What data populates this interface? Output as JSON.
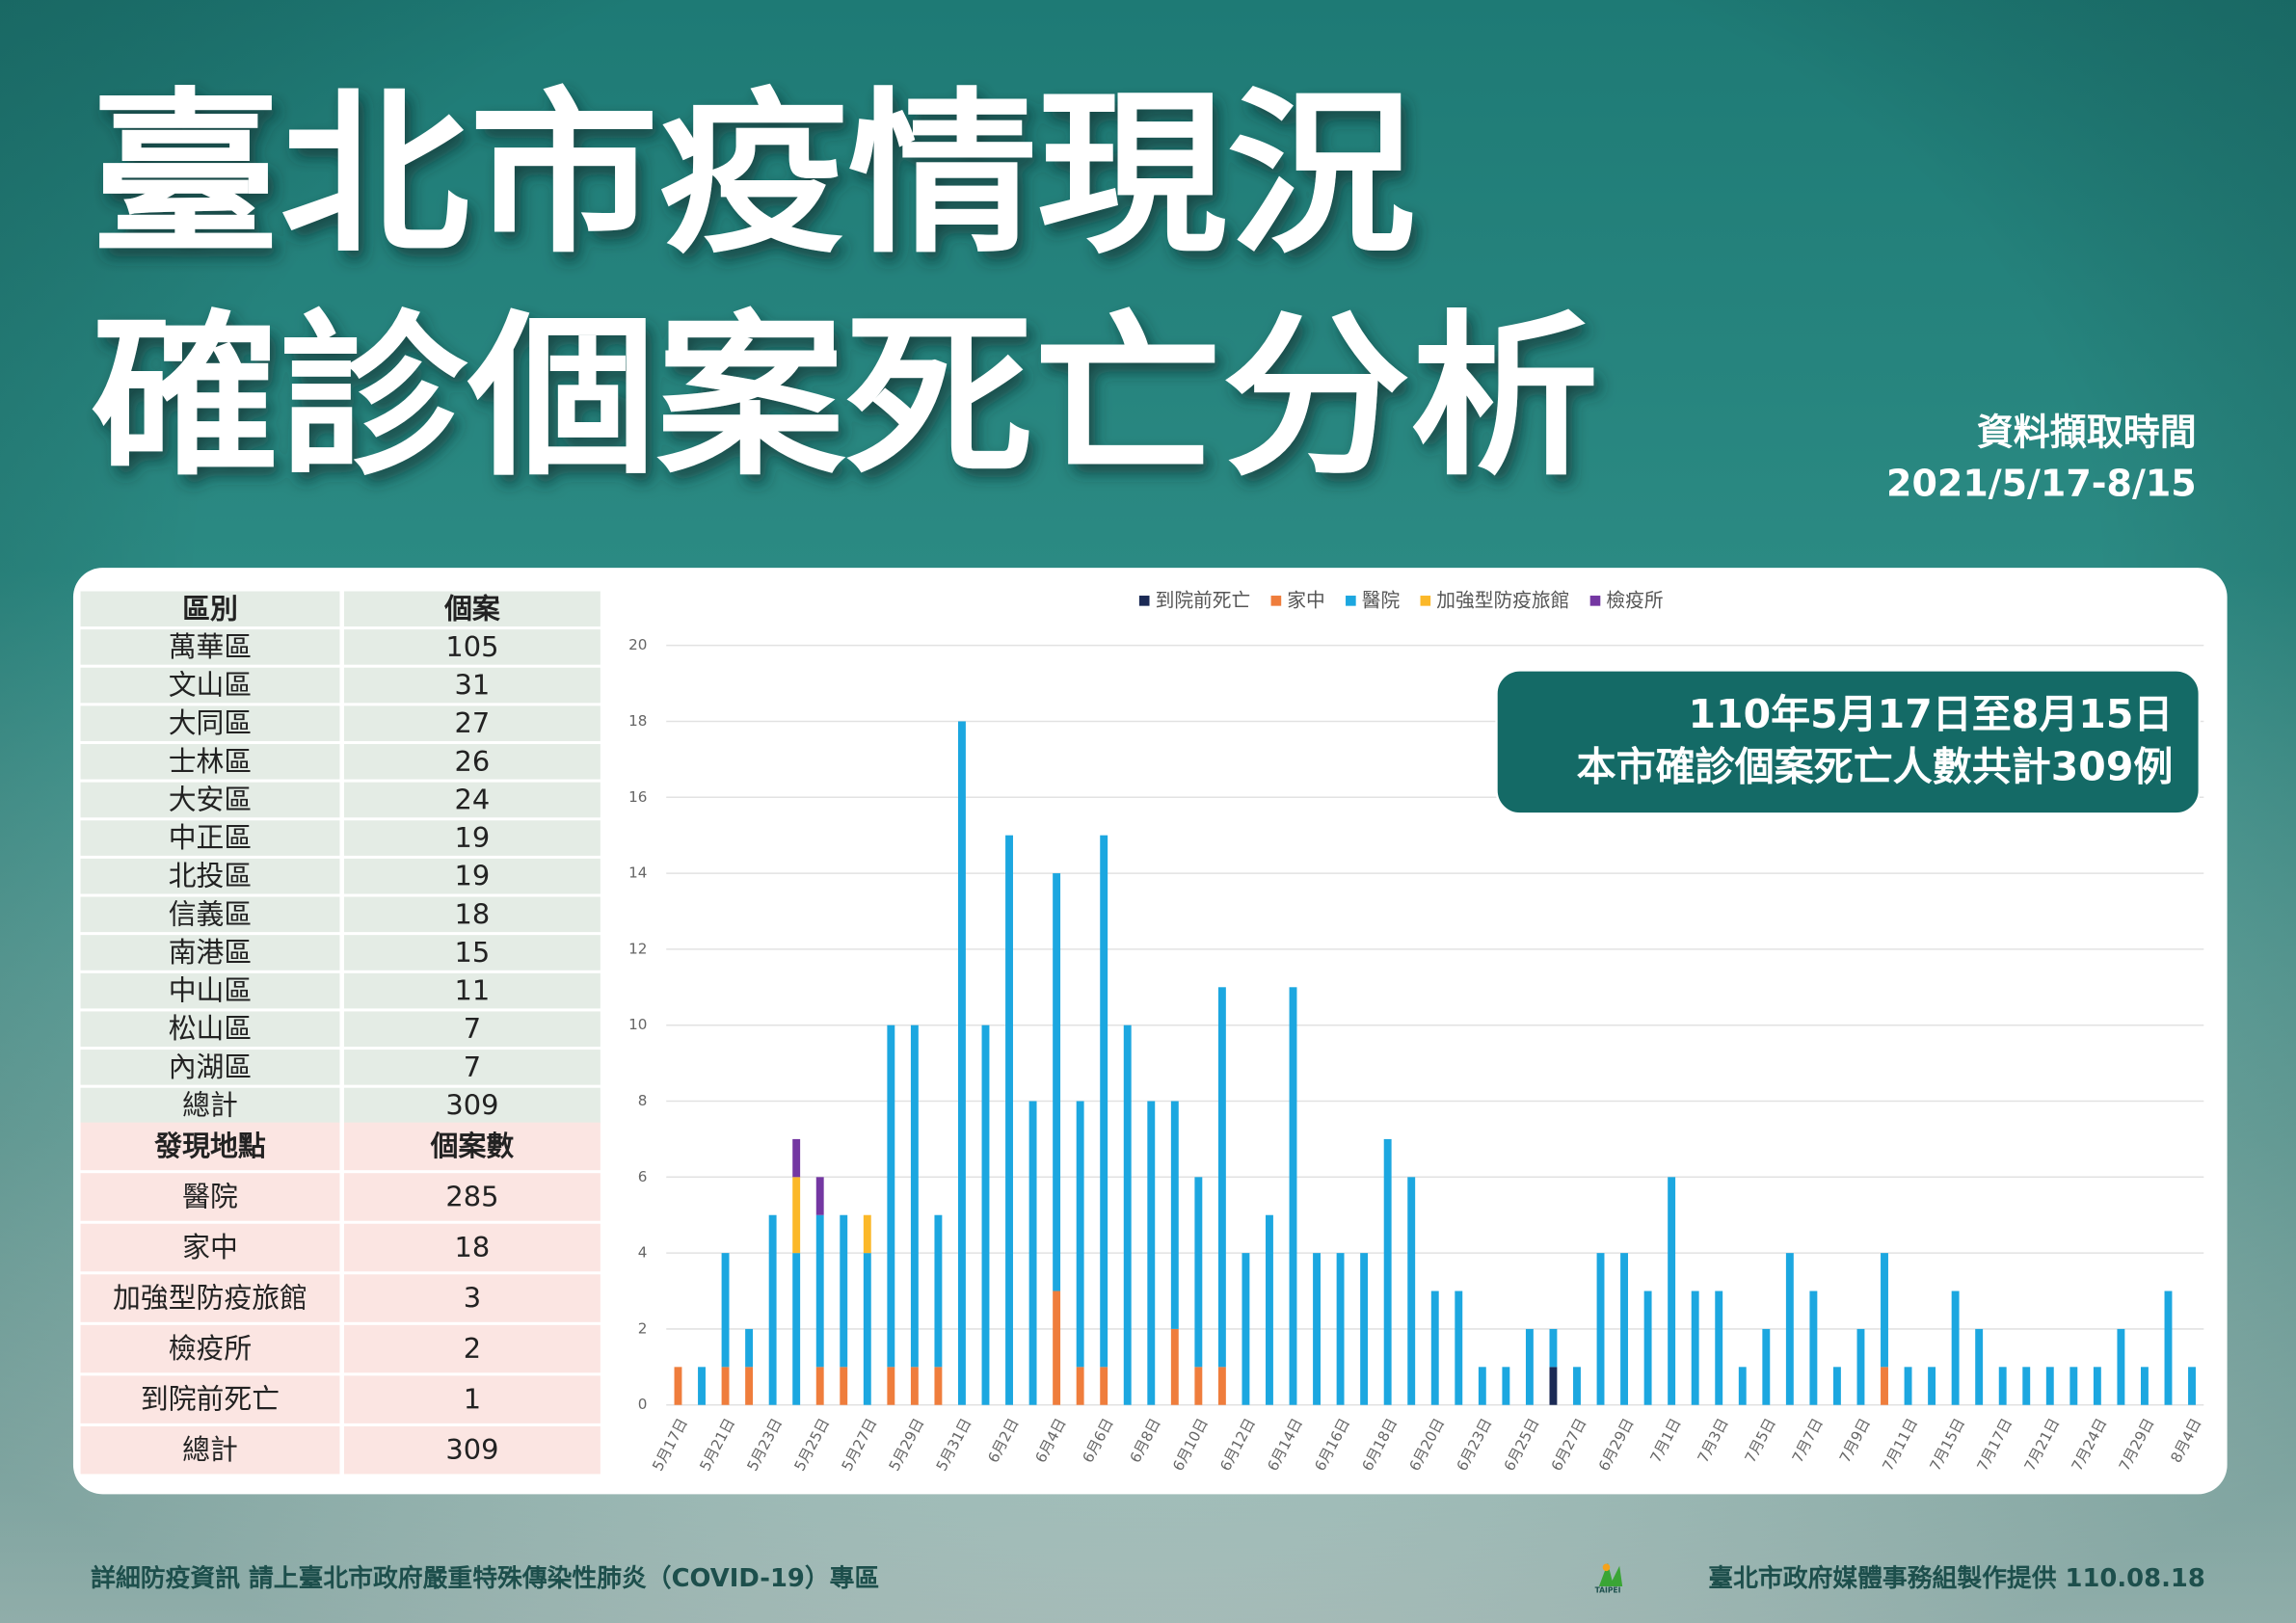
{
  "header": {
    "title_lines": [
      "臺北市疫情現況",
      "確診個案死亡分析"
    ],
    "date_caption": [
      "資料擷取時間",
      "2021/5/17-8/15"
    ]
  },
  "district_table": {
    "header": [
      "區別",
      "個案"
    ],
    "rows": [
      [
        "萬華區",
        105
      ],
      [
        "文山區",
        31
      ],
      [
        "大同區",
        27
      ],
      [
        "士林區",
        26
      ],
      [
        "大安區",
        24
      ],
      [
        "中正區",
        19
      ],
      [
        "北投區",
        19
      ],
      [
        "信義區",
        18
      ],
      [
        "南港區",
        15
      ],
      [
        "中山區",
        11
      ],
      [
        "松山區",
        7
      ],
      [
        "內湖區",
        7
      ],
      [
        "總計",
        309
      ]
    ]
  },
  "location_table": {
    "header": [
      "發現地點",
      "個案數"
    ],
    "rows": [
      [
        "醫院",
        285
      ],
      [
        "家中",
        18
      ],
      [
        "加強型防疫旅館",
        3
      ],
      [
        "檢疫所",
        2
      ],
      [
        "到院前死亡",
        1
      ],
      [
        "總計",
        309
      ]
    ]
  },
  "callout": [
    "110年5月17日至8月15日",
    "本市確診個案死亡人數共計309例"
  ],
  "footer": {
    "left": "詳細防疫資訊 請上臺北市政府嚴重特殊傳染性肺炎（COVID-19）專區",
    "logo_text": "TAIPEI",
    "right": "臺北市政府媒體事務組製作提供 110.08.18"
  },
  "chart_data": {
    "type": "stacked_bar",
    "categories": [
      "5月17日",
      null,
      "5月21日",
      null,
      "5月23日",
      null,
      "5月25日",
      null,
      "5月27日",
      null,
      "5月29日",
      null,
      "5月31日",
      null,
      "6月2日",
      null,
      "6月4日",
      null,
      "6月6日",
      null,
      "6月8日",
      null,
      "6月10日",
      null,
      "6月12日",
      null,
      "6月14日",
      null,
      "6月16日",
      null,
      "6月18日",
      null,
      "6月20日",
      null,
      "6月23日",
      null,
      "6月25日",
      null,
      "6月27日",
      null,
      "6月29日",
      null,
      "7月1日",
      null,
      "7月3日",
      null,
      "7月5日",
      null,
      "7月7日",
      null,
      "7月9日",
      null,
      "7月11日",
      null,
      "7月15日",
      null,
      "7月17日",
      null,
      "7月21日",
      null,
      "7月24日",
      null,
      "7月29日",
      null,
      "8月4日"
    ],
    "series": [
      {
        "name": "到院前死亡",
        "color": "#1b2a55",
        "values": [
          0,
          0,
          0,
          0,
          0,
          0,
          0,
          0,
          0,
          0,
          0,
          0,
          0,
          0,
          0,
          0,
          0,
          0,
          0,
          0,
          0,
          0,
          0,
          0,
          0,
          0,
          0,
          0,
          0,
          0,
          0,
          0,
          0,
          0,
          0,
          0,
          0,
          1,
          0,
          0,
          0,
          0,
          0,
          0,
          0,
          0,
          0,
          0,
          0,
          0,
          0,
          0,
          0,
          0,
          0,
          0,
          0,
          0,
          0,
          0,
          0,
          0,
          0,
          0,
          0
        ]
      },
      {
        "name": "家中",
        "color": "#ef7d3c",
        "values": [
          1,
          0,
          1,
          1,
          0,
          0,
          1,
          1,
          0,
          1,
          1,
          1,
          0,
          0,
          0,
          0,
          3,
          1,
          1,
          0,
          0,
          2,
          1,
          1,
          0,
          0,
          0,
          0,
          0,
          0,
          0,
          0,
          0,
          0,
          0,
          0,
          0,
          0,
          0,
          0,
          0,
          0,
          0,
          0,
          0,
          0,
          0,
          0,
          0,
          0,
          0,
          1,
          0,
          0,
          0,
          0,
          0,
          0,
          0,
          0,
          0,
          0,
          0,
          0,
          0
        ]
      },
      {
        "name": "醫院",
        "color": "#1ca7e0",
        "values": [
          0,
          1,
          3,
          1,
          5,
          4,
          4,
          4,
          4,
          9,
          9,
          4,
          18,
          10,
          15,
          8,
          11,
          7,
          14,
          10,
          8,
          6,
          5,
          10,
          4,
          5,
          11,
          4,
          4,
          4,
          7,
          6,
          3,
          3,
          1,
          1,
          2,
          1,
          1,
          4,
          4,
          3,
          6,
          3,
          3,
          1,
          2,
          4,
          3,
          1,
          2,
          3,
          1,
          1,
          3,
          2,
          1,
          1,
          1,
          1,
          1,
          2,
          1,
          3,
          1
        ]
      },
      {
        "name": "加強型防疫旅館",
        "color": "#fbb829",
        "values": [
          0,
          0,
          0,
          0,
          0,
          2,
          0,
          0,
          1,
          0,
          0,
          0,
          0,
          0,
          0,
          0,
          0,
          0,
          0,
          0,
          0,
          0,
          0,
          0,
          0,
          0,
          0,
          0,
          0,
          0,
          0,
          0,
          0,
          0,
          0,
          0,
          0,
          0,
          0,
          0,
          0,
          0,
          0,
          0,
          0,
          0,
          0,
          0,
          0,
          0,
          0,
          0,
          0,
          0,
          0,
          0,
          0,
          0,
          0,
          0,
          0,
          0,
          0,
          0,
          0
        ]
      },
      {
        "name": "檢疫所",
        "color": "#7437a2",
        "values": [
          0,
          0,
          0,
          0,
          0,
          1,
          1,
          0,
          0,
          0,
          0,
          0,
          0,
          0,
          0,
          0,
          0,
          0,
          0,
          0,
          0,
          0,
          0,
          0,
          0,
          0,
          0,
          0,
          0,
          0,
          0,
          0,
          0,
          0,
          0,
          0,
          0,
          0,
          0,
          0,
          0,
          0,
          0,
          0,
          0,
          0,
          0,
          0,
          0,
          0,
          0,
          0,
          0,
          0,
          0,
          0,
          0,
          0,
          0,
          0,
          0,
          0,
          0,
          0,
          0
        ]
      }
    ],
    "ylim": [
      0,
      20
    ],
    "yticks": [
      0,
      2,
      4,
      6,
      8,
      10,
      12,
      14,
      16,
      18,
      20
    ],
    "grid": true,
    "legend": "top"
  }
}
